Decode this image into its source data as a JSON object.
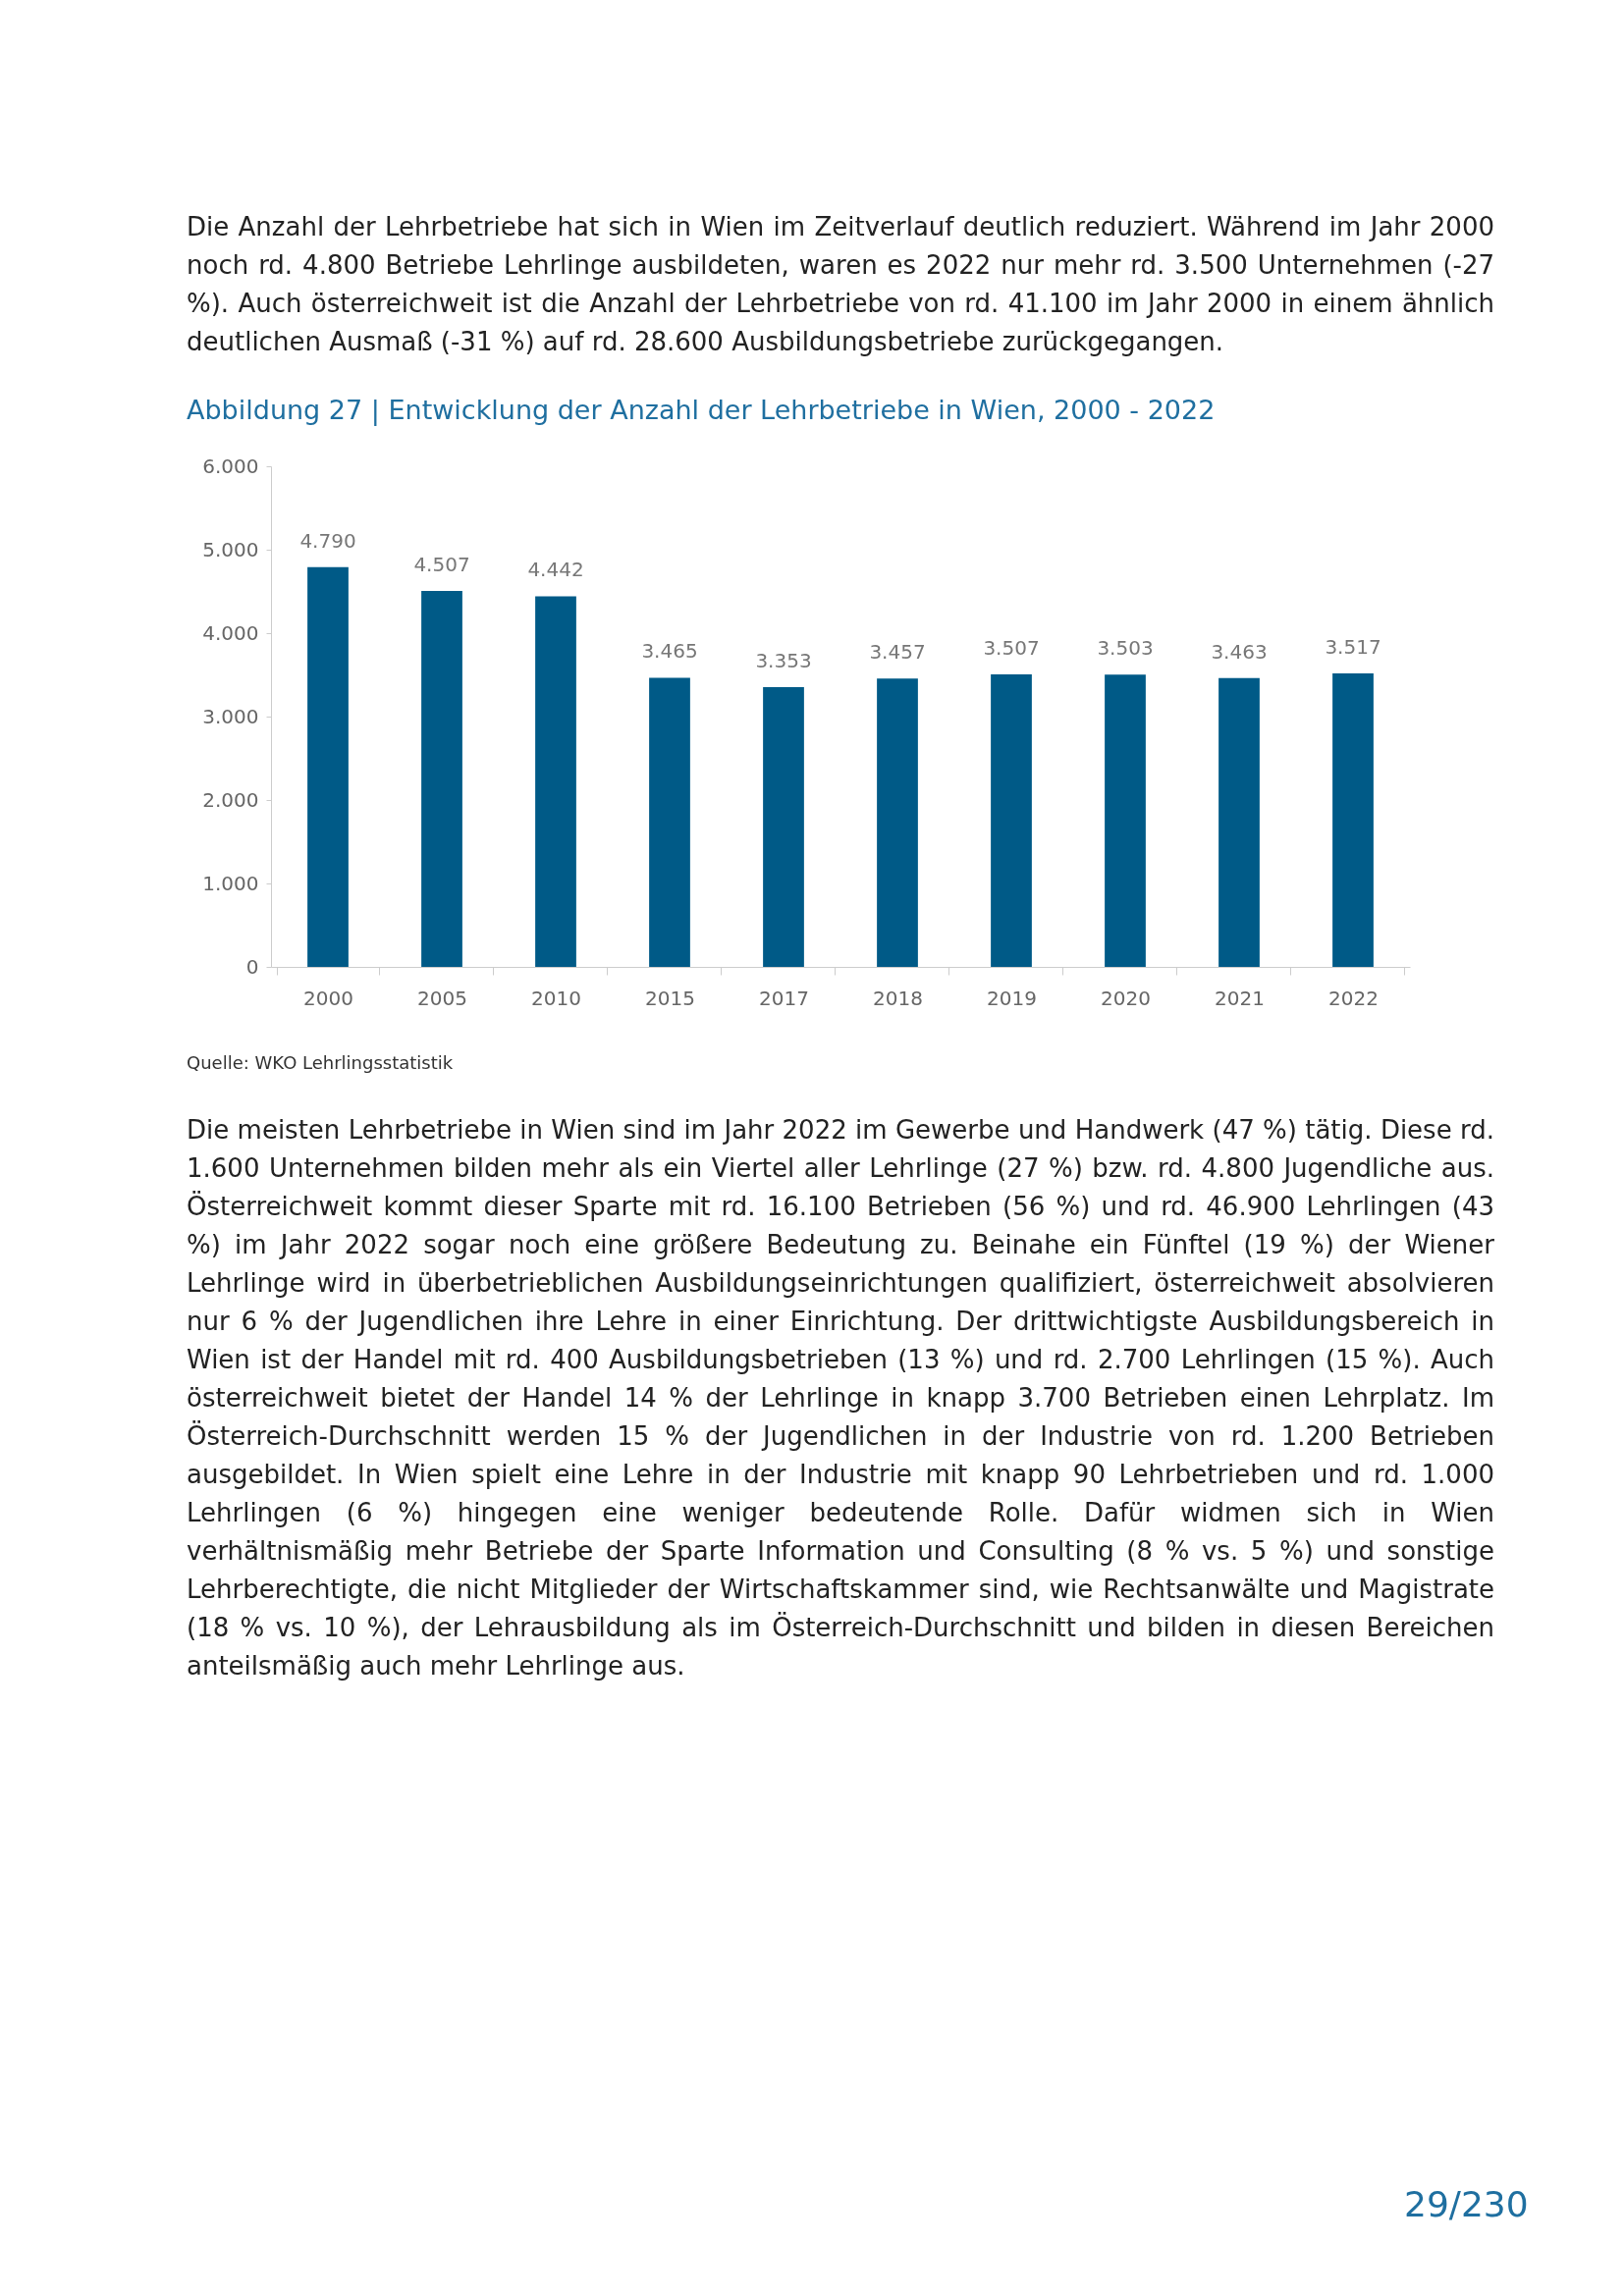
{
  "chart_data": {
    "type": "bar",
    "title": "Abbildung 27 | Entwicklung der Anzahl der Lehrbetriebe in Wien, 2000 - 2022",
    "categories": [
      "2000",
      "2005",
      "2010",
      "2015",
      "2017",
      "2018",
      "2019",
      "2020",
      "2021",
      "2022"
    ],
    "values": [
      4790,
      4507,
      4442,
      3465,
      3353,
      3457,
      3507,
      3503,
      3463,
      3517
    ],
    "value_labels": [
      "4.790",
      "4.507",
      "4.442",
      "3.465",
      "3.353",
      "3.457",
      "3.507",
      "3.503",
      "3.463",
      "3.517"
    ],
    "color": "#005a87",
    "ylim": [
      0,
      6000
    ],
    "yticks": [
      0,
      {
        "value": 1000,
        "label": "1.000"
      },
      {
        "value": 2000,
        "label": "2.000"
      },
      {
        "value": 3000,
        "label": "3.000"
      },
      {
        "value": 4000,
        "label": "4.000"
      },
      {
        "value": 5000,
        "label": "5.000"
      },
      {
        "value": 6000,
        "label": "6.000"
      }
    ],
    "grid": false,
    "annotations": [
      "Die Anzahl der Lehrbetriebe hat sich in Wien im Zeitverlauf deutlich reduziert. Während im Jahr 2000 noch rd. 4.800 Betriebe Lehrlinge ausbildeten, waren es 2022 nur mehr rd. 3.500 Unternehmen (-27 %). Auch österreichweit ist die Anzahl der Lehrbetriebe von rd. 41.100 im Jahr 2000 in einem ähnlich deutlichen Ausmaß (-31 %) auf rd. 28.600 Ausbildungsbetriebe zurückgegangen.",
      "Quelle: WKO Lehrlingsstatistik",
      "Die meisten Lehrbetriebe in Wien sind im Jahr 2022 im Gewerbe und Handwerk (47 %) tätig. Diese rd. 1.600 Unternehmen bilden mehr als ein Viertel aller Lehrlinge (27 %) bzw. rd. 4.800 Jugendliche aus. Österreichweit kommt dieser Sparte mit rd. 16.100 Betrieben (56 %) und rd. 46.900 Lehrlingen (43 %) im Jahr 2022 sogar noch eine größere Bedeutung zu. Beinahe ein Fünftel (19 %) der Wiener Lehrlinge wird in überbetrieblichen Ausbildungseinrichtungen qualifiziert, österreichweit absolvieren nur 6 % der Jugendlichen ihre Lehre in einer Einrichtung. Der drittwichtigste Ausbildungsbereich in Wien ist der Handel mit rd. 400 Ausbildungsbetrieben (13 %) und rd. 2.700 Lehrlingen (15 %). Auch österreichweit bietet der Handel 14 % der Lehrlinge in knapp 3.700 Betrieben einen Lehrplatz. Im Österreich-Durchschnitt werden 15 % der Jugendlichen in der Industrie von rd. 1.200 Betrieben ausgebildet. In Wien spielt eine Lehre in der Industrie mit knapp 90 Lehrbetrieben und rd. 1.000 Lehrlingen (6 %) hingegen eine weniger bedeutende Rolle. Dafür widmen sich in Wien verhältnismäßig mehr Betriebe der Sparte Information und Consulting (8 % vs. 5 %) und sonstige Lehrberechtigte, die nicht Mitglieder der Wirtschaftskammer sind, wie Rechtsanwälte und Magistrate (18 % vs. 10 %), der Lehrausbildung als im Österreich-Durchschnitt und bilden in diesen Bereichen anteilsmäßig auch mehr Lehrlinge aus.",
      "29/230"
    ]
  }
}
